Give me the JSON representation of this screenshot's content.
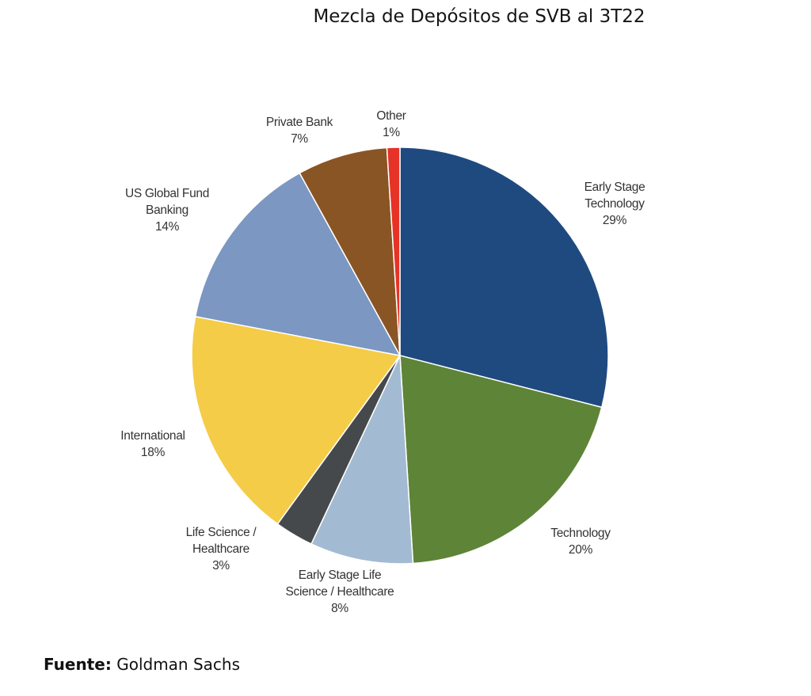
{
  "chart_data": {
    "type": "pie",
    "title": "Mezcla de Depósitos de SVB al 3T22",
    "start": "top",
    "direction": "clockwise",
    "slices": [
      {
        "label": "Early Stage\nTechnology",
        "value": 29,
        "pct": "29%",
        "color": "#1f4a80"
      },
      {
        "label": "Technology",
        "value": 20,
        "pct": "20%",
        "color": "#5e8437"
      },
      {
        "label": "Early Stage Life\nScience / Healthcare",
        "value": 8,
        "pct": "8%",
        "color": "#a3bbd2"
      },
      {
        "label": "Life Science /\nHealthcare",
        "value": 3,
        "pct": "3%",
        "color": "#46494c"
      },
      {
        "label": "International",
        "value": 18,
        "pct": "18%",
        "color": "#f5cc47"
      },
      {
        "label": "US Global Fund\nBanking",
        "value": 14,
        "pct": "14%",
        "color": "#7b97c2"
      },
      {
        "label": "Private Bank",
        "value": 7,
        "pct": "7%",
        "color": "#8a5524"
      },
      {
        "label": "Other",
        "value": 1,
        "pct": "1%",
        "color": "#e63327"
      }
    ]
  },
  "footer": {
    "label": "Fuente:",
    "source": "Goldman Sachs"
  }
}
